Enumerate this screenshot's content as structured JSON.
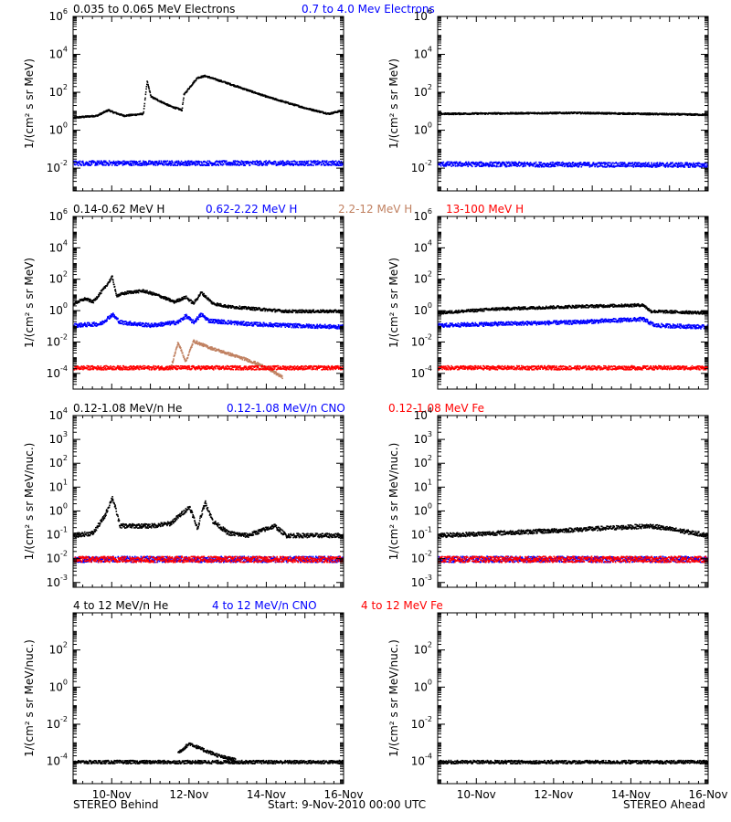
{
  "figure": {
    "footer_left": "STEREO Behind",
    "footer_center": "Start:  9-Nov-2010 00:00 UTC",
    "footer_right": "STEREO Ahead"
  },
  "colors": {
    "black": "#000000",
    "blue": "#0000ff",
    "tan": "#c08060",
    "red": "#ff0000"
  },
  "chart_data": [
    {
      "type": "scatter",
      "row": 1,
      "ylabel": "1/(cm² s sr MeV)",
      "ylim_log10": [
        -3.2,
        6
      ],
      "ytick_exponents": [
        -2,
        0,
        2,
        4,
        6
      ],
      "xlim_days": [
        9.0,
        16.0
      ],
      "xticks": [
        "10-Nov",
        "12-Nov",
        "14-Nov",
        "16-Nov"
      ],
      "legend": [
        {
          "label": "0.035 to 0.065 MeV Electrons",
          "color": "#000000"
        },
        {
          "label": "0.7 to 4.0 Mev Electrons",
          "color": "#0000ff"
        }
      ],
      "series_behind": [
        {
          "color": "#000000",
          "log10_points": [
            [
              9.0,
              0.7
            ],
            [
              9.6,
              0.8
            ],
            [
              9.9,
              1.1
            ],
            [
              10.0,
              1.0
            ],
            [
              10.3,
              0.8
            ],
            [
              10.8,
              0.9
            ],
            [
              10.9,
              2.6
            ],
            [
              11.0,
              1.8
            ],
            [
              11.5,
              1.3
            ],
            [
              11.8,
              1.1
            ],
            [
              11.85,
              1.9
            ],
            [
              12.0,
              2.3
            ],
            [
              12.2,
              2.8
            ],
            [
              12.4,
              2.9
            ],
            [
              13.0,
              2.5
            ],
            [
              14.0,
              1.8
            ],
            [
              15.0,
              1.2
            ],
            [
              15.6,
              0.9
            ],
            [
              16.0,
              1.1
            ]
          ]
        },
        {
          "color": "#0000ff",
          "log10_points": [
            [
              9.0,
              -1.7
            ],
            [
              16.0,
              -1.7
            ]
          ]
        }
      ],
      "series_ahead": [
        {
          "color": "#000000",
          "log10_points": [
            [
              9.0,
              0.9
            ],
            [
              12.5,
              0.95
            ],
            [
              16.0,
              0.85
            ]
          ]
        },
        {
          "color": "#0000ff",
          "log10_points": [
            [
              9.0,
              -1.75
            ],
            [
              16.0,
              -1.8
            ]
          ]
        }
      ]
    },
    {
      "type": "scatter",
      "row": 2,
      "ylabel": "1/(cm² s sr MeV)",
      "ylim_log10": [
        -5,
        6
      ],
      "ytick_exponents": [
        -4,
        -2,
        0,
        2,
        4,
        6
      ],
      "xlim_days": [
        9.0,
        16.0
      ],
      "xticks": [
        "10-Nov",
        "12-Nov",
        "14-Nov",
        "16-Nov"
      ],
      "legend": [
        {
          "label": "0.14-0.62 MeV H",
          "color": "#000000"
        },
        {
          "label": "0.62-2.22 MeV H",
          "color": "#0000ff"
        },
        {
          "label": "2.2-12 MeV H",
          "color": "#c08060"
        },
        {
          "label": "13-100 MeV H",
          "color": "#ff0000"
        }
      ],
      "series_behind": [
        {
          "color": "#000000",
          "log10_points": [
            [
              9.0,
              0.5
            ],
            [
              9.3,
              0.8
            ],
            [
              9.5,
              0.6
            ],
            [
              9.8,
              1.5
            ],
            [
              10.0,
              2.2
            ],
            [
              10.1,
              1.0
            ],
            [
              10.4,
              1.2
            ],
            [
              10.8,
              1.3
            ],
            [
              11.2,
              1.0
            ],
            [
              11.6,
              0.6
            ],
            [
              11.9,
              0.9
            ],
            [
              12.1,
              0.5
            ],
            [
              12.3,
              1.2
            ],
            [
              12.6,
              0.5
            ],
            [
              13.0,
              0.3
            ],
            [
              13.5,
              0.2
            ],
            [
              14.0,
              0.1
            ],
            [
              14.5,
              0.0
            ],
            [
              15.0,
              0.0
            ],
            [
              16.0,
              0.0
            ]
          ]
        },
        {
          "color": "#0000ff",
          "log10_points": [
            [
              9.0,
              -0.9
            ],
            [
              9.7,
              -0.8
            ],
            [
              10.0,
              -0.2
            ],
            [
              10.2,
              -0.7
            ],
            [
              11.0,
              -0.9
            ],
            [
              11.7,
              -0.7
            ],
            [
              11.9,
              -0.3
            ],
            [
              12.1,
              -0.7
            ],
            [
              12.3,
              -0.2
            ],
            [
              12.5,
              -0.6
            ],
            [
              13.5,
              -0.8
            ],
            [
              14.5,
              -0.9
            ],
            [
              16.0,
              -1.0
            ]
          ]
        },
        {
          "color": "#c08060",
          "log10_points": [
            [
              11.5,
              -3.7
            ],
            [
              11.7,
              -2.0
            ],
            [
              11.9,
              -3.2
            ],
            [
              12.1,
              -1.9
            ],
            [
              12.5,
              -2.3
            ],
            [
              13.0,
              -2.7
            ],
            [
              13.5,
              -3.1
            ],
            [
              14.0,
              -3.6
            ],
            [
              14.4,
              -4.2
            ]
          ]
        },
        {
          "color": "#ff0000",
          "log10_points": [
            [
              9.0,
              -3.6
            ],
            [
              16.0,
              -3.6
            ]
          ]
        }
      ],
      "series_ahead": [
        {
          "color": "#000000",
          "log10_points": [
            [
              9.0,
              -0.1
            ],
            [
              10.5,
              0.15
            ],
            [
              12.5,
              0.3
            ],
            [
              14.3,
              0.4
            ],
            [
              14.5,
              0.0
            ],
            [
              16.0,
              -0.1
            ]
          ]
        },
        {
          "color": "#0000ff",
          "log10_points": [
            [
              9.0,
              -0.9
            ],
            [
              10.5,
              -0.8
            ],
            [
              12.5,
              -0.7
            ],
            [
              14.3,
              -0.5
            ],
            [
              14.6,
              -0.9
            ],
            [
              16.0,
              -1.0
            ]
          ]
        },
        {
          "color": "#ff0000",
          "log10_points": [
            [
              9.0,
              -3.6
            ],
            [
              16.0,
              -3.6
            ]
          ]
        }
      ]
    },
    {
      "type": "scatter",
      "row": 3,
      "ylabel": "1/(cm² s sr MeV/nuc.)",
      "ylim_log10": [
        -3.2,
        4
      ],
      "ytick_exponents": [
        -3,
        -2,
        -1,
        0,
        1,
        2,
        3,
        4
      ],
      "xlim_days": [
        9.0,
        16.0
      ],
      "xticks": [
        "10-Nov",
        "12-Nov",
        "14-Nov",
        "16-Nov"
      ],
      "legend": [
        {
          "label": "0.12-1.08 MeV/n He",
          "color": "#000000"
        },
        {
          "label": "0.12-1.08 MeV/n CNO",
          "color": "#0000ff"
        },
        {
          "label": "0.12-1.08 MeV Fe",
          "color": "#ff0000"
        }
      ],
      "series_behind": [
        {
          "color": "#000000",
          "log10_points": [
            [
              9.0,
              -1.0
            ],
            [
              9.5,
              -0.9
            ],
            [
              9.8,
              -0.2
            ],
            [
              10.0,
              0.6
            ],
            [
              10.2,
              -0.6
            ],
            [
              11.0,
              -0.6
            ],
            [
              11.5,
              -0.5
            ],
            [
              12.0,
              0.2
            ],
            [
              12.2,
              -0.7
            ],
            [
              12.4,
              0.4
            ],
            [
              12.6,
              -0.4
            ],
            [
              13.0,
              -0.9
            ],
            [
              13.5,
              -1.0
            ],
            [
              14.2,
              -0.6
            ],
            [
              14.5,
              -1.0
            ],
            [
              16.0,
              -1.0
            ]
          ]
        },
        {
          "color": "#0000ff",
          "log10_points": [
            [
              9.0,
              -2.0
            ],
            [
              16.0,
              -2.0
            ]
          ]
        },
        {
          "color": "#ff0000",
          "log10_points": [
            [
              9.0,
              -2.0
            ],
            [
              16.0,
              -2.0
            ]
          ]
        }
      ],
      "series_ahead": [
        {
          "color": "#000000",
          "log10_points": [
            [
              9.0,
              -1.0
            ],
            [
              12.0,
              -0.8
            ],
            [
              14.5,
              -0.6
            ],
            [
              16.0,
              -1.0
            ]
          ]
        },
        {
          "color": "#0000ff",
          "log10_points": [
            [
              9.0,
              -2.0
            ],
            [
              16.0,
              -2.0
            ]
          ]
        },
        {
          "color": "#ff0000",
          "log10_points": [
            [
              9.0,
              -2.0
            ],
            [
              16.0,
              -2.0
            ]
          ]
        }
      ]
    },
    {
      "type": "scatter",
      "row": 4,
      "ylabel": "1/(cm² s sr MeV/nuc.)",
      "ylim_log10": [
        -5.2,
        4
      ],
      "ytick_exponents": [
        -4,
        -2,
        0,
        2
      ],
      "xlim_days": [
        9.0,
        16.0
      ],
      "xticks": [
        "10-Nov",
        "12-Nov",
        "14-Nov",
        "16-Nov"
      ],
      "legend": [
        {
          "label": "4 to 12 MeV/n He",
          "color": "#000000"
        },
        {
          "label": "4 to 12 MeV/n CNO",
          "color": "#0000ff"
        },
        {
          "label": "4 to 12 MeV Fe",
          "color": "#ff0000"
        }
      ],
      "series_behind": [
        {
          "color": "#000000",
          "log10_points": [
            [
              9.0,
              -4.0
            ],
            [
              16.0,
              -4.0
            ]
          ]
        },
        {
          "color": "#000000",
          "log10_points": [
            [
              11.7,
              -3.5
            ],
            [
              12.0,
              -3.0
            ],
            [
              12.3,
              -3.3
            ],
            [
              12.8,
              -3.7
            ],
            [
              13.2,
              -3.9
            ]
          ]
        }
      ],
      "series_ahead": [
        {
          "color": "#000000",
          "log10_points": [
            [
              9.0,
              -4.0
            ],
            [
              16.0,
              -4.0
            ]
          ]
        }
      ]
    }
  ]
}
